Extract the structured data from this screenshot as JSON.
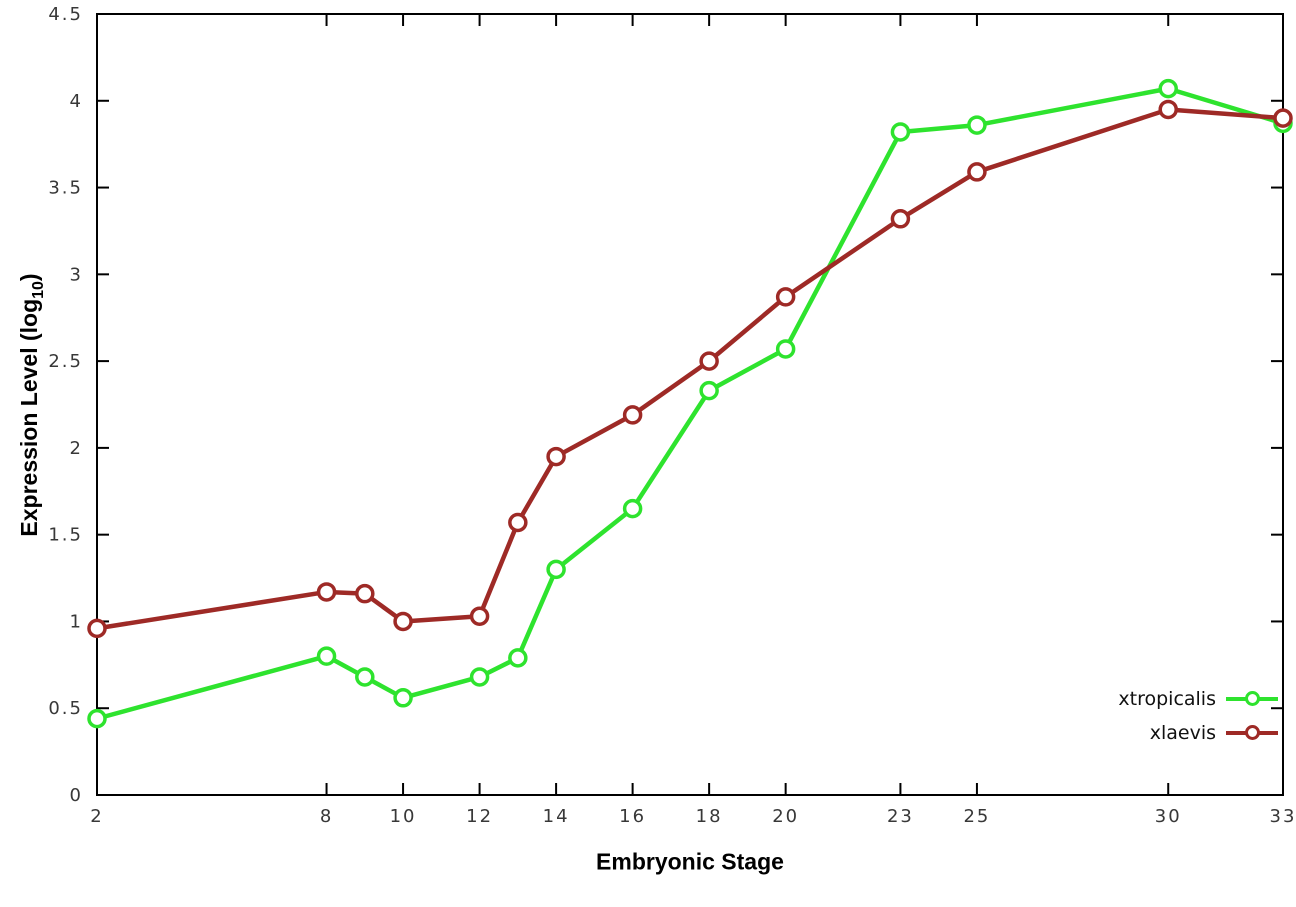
{
  "labels": {
    "y_main": "Expression Level (log",
    "y_sub": "10",
    "y_close": ")",
    "x": "Embryonic Stage"
  },
  "chart_data": {
    "type": "line",
    "title": "",
    "xlabel": "Embryonic Stage",
    "ylabel": "Expression Level (log10)",
    "grid": false,
    "legend_position": "bottom-right",
    "marker": "open-circle",
    "xlim": [
      2,
      33
    ],
    "ylim": [
      0,
      4.5
    ],
    "xticks": [
      2,
      8,
      10,
      12,
      14,
      16,
      18,
      20,
      23,
      25,
      30,
      33
    ],
    "yticks": [
      0,
      0.5,
      1,
      1.5,
      2,
      2.5,
      3,
      3.5,
      4,
      4.5
    ],
    "x": [
      2,
      8,
      9,
      10,
      12,
      13,
      14,
      16,
      18,
      20,
      23,
      25,
      30,
      33
    ],
    "series": [
      {
        "name": "xtropicalis",
        "color": "#2ee32e",
        "values": [
          0.44,
          0.8,
          0.68,
          0.56,
          0.68,
          0.79,
          1.3,
          1.65,
          2.33,
          2.57,
          3.82,
          3.86,
          4.07,
          3.87
        ]
      },
      {
        "name": "xlaevis",
        "color": "#9e2a26",
        "values": [
          0.96,
          1.17,
          1.16,
          1.0,
          1.03,
          1.57,
          1.95,
          2.19,
          2.5,
          2.87,
          3.32,
          3.59,
          3.95,
          3.9
        ]
      }
    ]
  }
}
